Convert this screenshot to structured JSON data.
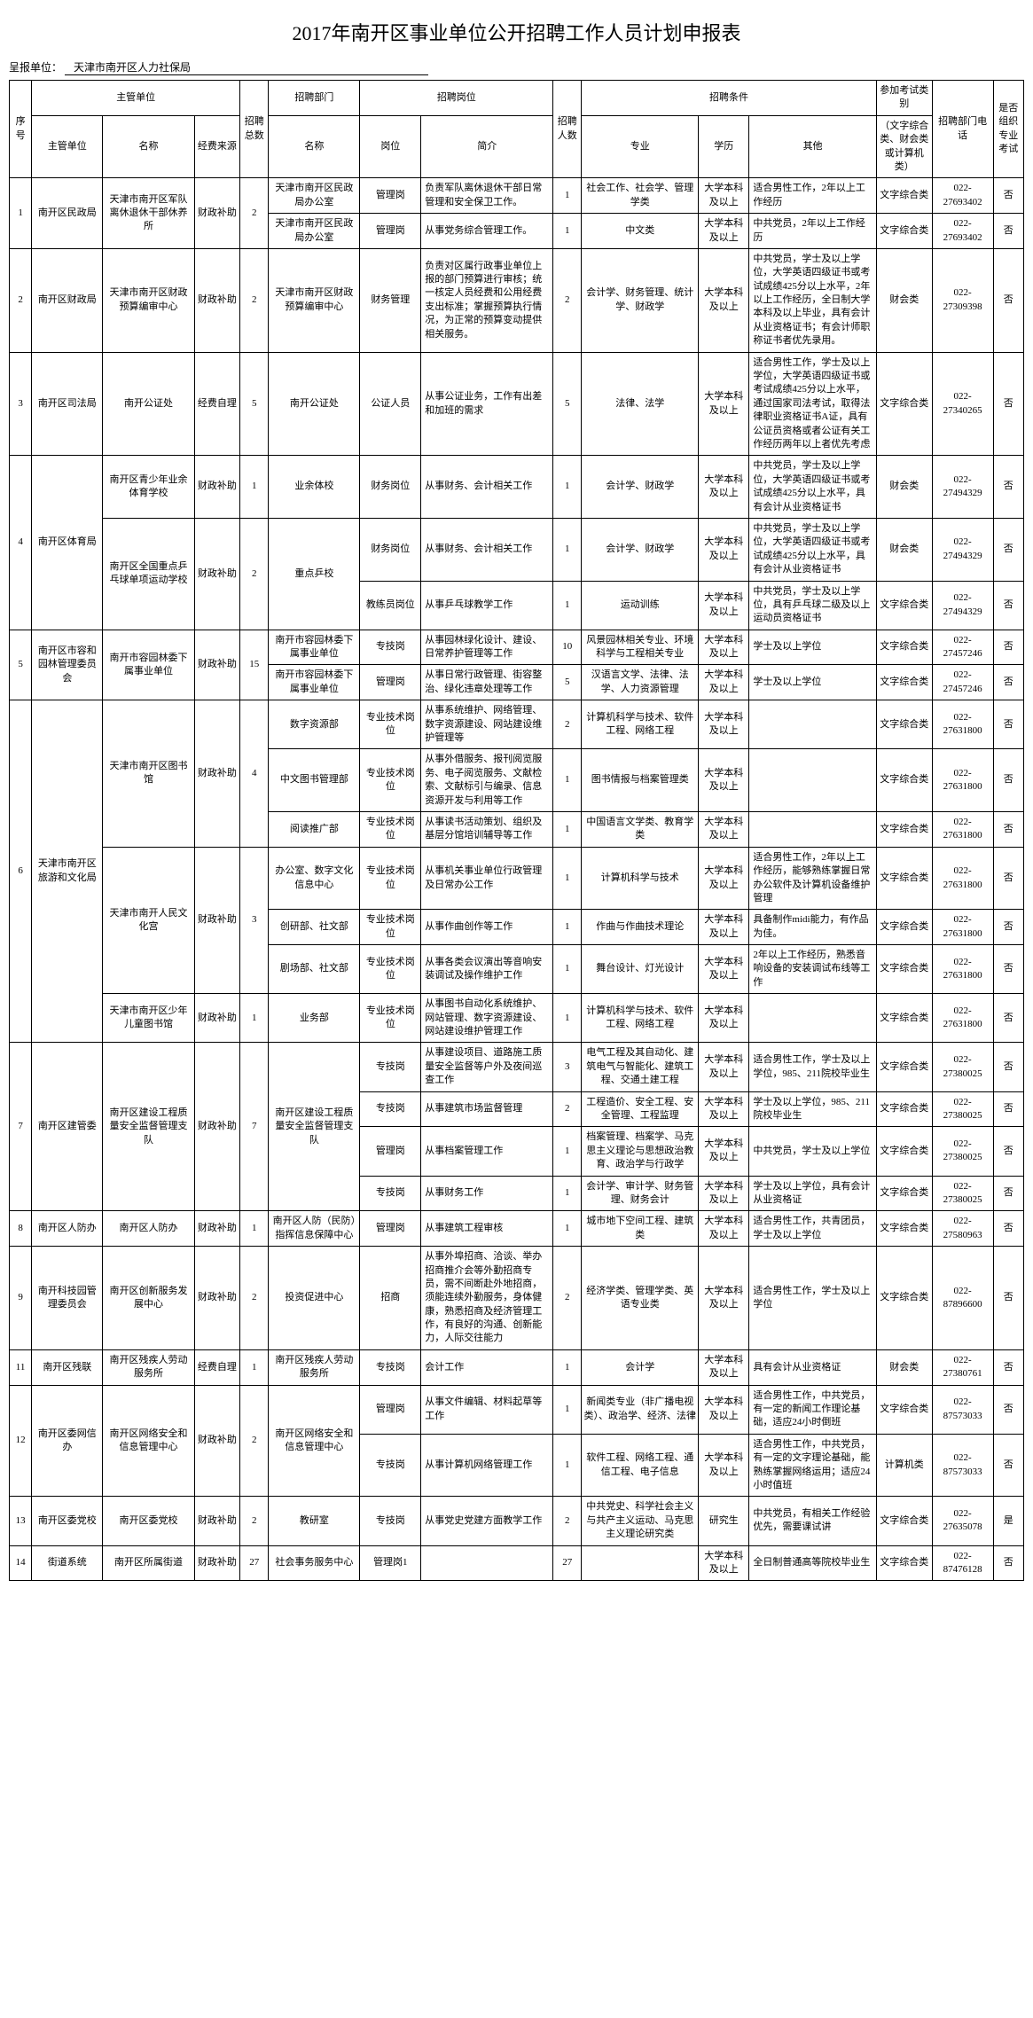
{
  "title": "2017年南开区事业单位公开招聘工作人员计划申报表",
  "submit_label": "呈报单位：",
  "submit_unit": "天津市南开区人力社保局",
  "headers": {
    "xu": "序号",
    "zgdw": "主管单位",
    "zgdw_sub1": "主管单位",
    "zgdw_sub2": "名称",
    "jfly": "经费来源",
    "zps": "招聘总数",
    "zpbm": "招聘部门",
    "zpbm_sub": "名称",
    "zpgw": "招聘岗位",
    "gw": "岗位",
    "jj": "简介",
    "rs": "招聘人数",
    "zptj": "招聘条件",
    "zy": "专业",
    "xl": "学历",
    "qt": "其他",
    "kslb": "参加考试类别",
    "kslb_sub": "（文字综合类、财会类或计算机类）",
    "tel": "招聘部门电话",
    "zyks": "是否组织专业考试"
  },
  "rows": [
    {
      "xu": "1",
      "zg": "南开区民政局",
      "mc": "天津市南开区军队离休退休干部休养所",
      "jf": "财政补助",
      "zs": "2",
      "sub": [
        {
          "bm": "天津市南开区民政局办公室",
          "gw": "管理岗",
          "jj": "负责军队离休退休干部日常管理和安全保卫工作。",
          "rs": "1",
          "zy": "社会工作、社会学、管理学类",
          "xl": "大学本科及以上",
          "qt": "适合男性工作，2年以上工作经历",
          "ks": "文字综合类",
          "tel": "022-27693402",
          "zk": "否"
        },
        {
          "bm": "天津市南开区民政局办公室",
          "gw": "管理岗",
          "jj": "从事党务综合管理工作。",
          "rs": "1",
          "zy": "中文类",
          "xl": "大学本科及以上",
          "qt": "中共党员，2年以上工作经历",
          "ks": "文字综合类",
          "tel": "022-27693402",
          "zk": "否"
        }
      ]
    },
    {
      "xu": "2",
      "zg": "南开区财政局",
      "mc": "天津市南开区财政预算编审中心",
      "jf": "财政补助",
      "zs": "2",
      "sub": [
        {
          "bm": "天津市南开区财政预算编审中心",
          "gw": "财务管理",
          "jj": "负责对区属行政事业单位上报的部门预算进行审核；统一核定人员经费和公用经费支出标准；掌握预算执行情况，为正常的预算变动提供相关服务。",
          "rs": "2",
          "zy": "会计学、财务管理、统计学、财政学",
          "xl": "大学本科及以上",
          "qt": "中共党员，学士及以上学位，大学英语四级证书或考试成绩425分以上水平，2年以上工作经历，全日制大学本科及以上毕业，具有会计从业资格证书；有会计师职称证书者优先录用。",
          "ks": "财会类",
          "tel": "022-27309398",
          "zk": "否"
        }
      ]
    },
    {
      "xu": "3",
      "zg": "南开区司法局",
      "mc": "南开公证处",
      "jf": "经费自理",
      "zs": "5",
      "sub": [
        {
          "bm": "南开公证处",
          "gw": "公证人员",
          "jj": "从事公证业务，工作有出差和加班的需求",
          "rs": "5",
          "zy": "法律、法学",
          "xl": "大学本科及以上",
          "qt": "适合男性工作，学士及以上学位，大学英语四级证书或考试成绩425分以上水平，通过国家司法考试，取得法律职业资格证书A证，具有公证员资格或者公证有关工作经历两年以上者优先考虑",
          "ks": "文字综合类",
          "tel": "022-27340265",
          "zk": "否"
        }
      ]
    },
    {
      "xu": "4",
      "zg": "南开区体育局",
      "mc_list": [
        {
          "mc": "南开区青少年业余体育学校",
          "jf": "财政补助",
          "zs": "1",
          "sub": [
            {
              "bm": "业余体校",
              "gw": "财务岗位",
              "jj": "从事财务、会计相关工作",
              "rs": "1",
              "zy": "会计学、财政学",
              "xl": "大学本科及以上",
              "qt": "中共党员，学士及以上学位，大学英语四级证书或考试成绩425分以上水平，具有会计从业资格证书",
              "ks": "财会类",
              "tel": "022-27494329",
              "zk": "否"
            }
          ]
        },
        {
          "mc": "南开区全国重点乒乓球单项运动学校",
          "jf": "财政补助",
          "zs": "2",
          "sub": [
            {
              "bm": "重点乒校",
              "gw": "财务岗位",
              "jj": "从事财务、会计相关工作",
              "rs": "1",
              "zy": "会计学、财政学",
              "xl": "大学本科及以上",
              "qt": "中共党员，学士及以上学位，大学英语四级证书或考试成绩425分以上水平，具有会计从业资格证书",
              "ks": "财会类",
              "tel": "022-27494329",
              "zk": "否"
            },
            {
              "bm": "",
              "gw": "教练员岗位",
              "jj": "从事乒乓球教学工作",
              "rs": "1",
              "zy": "运动训练",
              "xl": "大学本科及以上",
              "qt": "中共党员，学士及以上学位，具有乒乓球二级及以上运动员资格证书",
              "ks": "文字综合类",
              "tel": "022-27494329",
              "zk": "否"
            }
          ]
        }
      ]
    },
    {
      "xu": "5",
      "zg": "南开区市容和园林管理委员会",
      "mc": "南开市容园林委下属事业单位",
      "jf": "财政补助",
      "zs": "15",
      "sub": [
        {
          "bm": "南开市容园林委下属事业单位",
          "gw": "专技岗",
          "jj": "从事园林绿化设计、建设、日常养护管理等工作",
          "rs": "10",
          "zy": "风景园林相关专业、环境科学与工程相关专业",
          "xl": "大学本科及以上",
          "qt": "学士及以上学位",
          "ks": "文字综合类",
          "tel": "022-27457246",
          "zk": "否"
        },
        {
          "bm": "南开市容园林委下属事业单位",
          "gw": "管理岗",
          "jj": "从事日常行政管理、街容整治、绿化违章处理等工作",
          "rs": "5",
          "zy": "汉语言文学、法律、法学、人力资源管理",
          "xl": "大学本科及以上",
          "qt": "学士及以上学位",
          "ks": "文字综合类",
          "tel": "022-27457246",
          "zk": "否"
        }
      ]
    },
    {
      "xu": "6",
      "zg": "天津市南开区旅游和文化局",
      "mc_list": [
        {
          "mc": "天津市南开区图书馆",
          "jf": "财政补助",
          "zs": "4",
          "sub": [
            {
              "bm": "数字资源部",
              "gw": "专业技术岗位",
              "jj": "从事系统维护、网络管理、数字资源建设、网站建设维护管理等",
              "rs": "2",
              "zy": "计算机科学与技术、软件工程、网络工程",
              "xl": "大学本科及以上",
              "qt": "",
              "ks": "文字综合类",
              "tel": "022-27631800",
              "zk": "否"
            },
            {
              "bm": "中文图书管理部",
              "gw": "专业技术岗位",
              "jj": "从事外借服务、报刊阅览服务、电子阅览服务、文献检索、文献标引与编录、信息资源开发与利用等工作",
              "rs": "1",
              "zy": "图书情报与档案管理类",
              "xl": "大学本科及以上",
              "qt": "",
              "ks": "文字综合类",
              "tel": "022-27631800",
              "zk": "否"
            },
            {
              "bm": "阅读推广部",
              "gw": "专业技术岗位",
              "jj": "从事读书活动策划、组织及基层分馆培训辅导等工作",
              "rs": "1",
              "zy": "中国语言文学类、教育学类",
              "xl": "大学本科及以上",
              "qt": "",
              "ks": "文字综合类",
              "tel": "022-27631800",
              "zk": "否"
            }
          ]
        },
        {
          "mc": "天津市南开人民文化宫",
          "jf": "财政补助",
          "zs": "3",
          "sub": [
            {
              "bm": "办公室、数字文化信息中心",
              "gw": "专业技术岗位",
              "jj": "从事机关事业单位行政管理及日常办公工作",
              "rs": "1",
              "zy": "计算机科学与技术",
              "xl": "大学本科及以上",
              "qt": "适合男性工作，2年以上工作经历，能够熟练掌握日常办公软件及计算机设备维护管理",
              "ks": "文字综合类",
              "tel": "022-27631800",
              "zk": "否"
            },
            {
              "bm": "创研部、社文部",
              "gw": "专业技术岗位",
              "jj": "从事作曲创作等工作",
              "rs": "1",
              "zy": "作曲与作曲技术理论",
              "xl": "大学本科及以上",
              "qt": "具备制作midi能力，有作品为佳。",
              "ks": "文字综合类",
              "tel": "022-27631800",
              "zk": "否"
            },
            {
              "bm": "剧场部、社文部",
              "gw": "专业技术岗位",
              "jj": "从事各类会议演出等音响安装调试及操作维护工作",
              "rs": "1",
              "zy": "舞台设计、灯光设计",
              "xl": "大学本科及以上",
              "qt": "2年以上工作经历，熟悉音响设备的安装调试布线等工作",
              "ks": "文字综合类",
              "tel": "022-27631800",
              "zk": "否"
            }
          ]
        },
        {
          "mc": "天津市南开区少年儿童图书馆",
          "jf": "财政补助",
          "zs": "1",
          "sub": [
            {
              "bm": "业务部",
              "gw": "专业技术岗位",
              "jj": "从事图书自动化系统维护、网站管理、数字资源建设、网站建设维护管理工作",
              "rs": "1",
              "zy": "计算机科学与技术、软件工程、网络工程",
              "xl": "大学本科及以上",
              "qt": "",
              "ks": "文字综合类",
              "tel": "022-27631800",
              "zk": "否"
            }
          ]
        }
      ]
    },
    {
      "xu": "7",
      "zg": "南开区建管委",
      "mc": "南开区建设工程质量安全监督管理支队",
      "jf": "财政补助",
      "zs": "7",
      "sub": [
        {
          "bm": "南开区建设工程质量安全监督管理支队",
          "gw": "专技岗",
          "jj": "从事建设项目、道路施工质量安全监督等户外及夜间巡查工作",
          "rs": "3",
          "zy": "电气工程及其自动化、建筑电气与智能化、建筑工程、交通土建工程",
          "xl": "大学本科及以上",
          "qt": "适合男性工作，学士及以上学位，985、211院校毕业生",
          "ks": "文字综合类",
          "tel": "022-27380025",
          "zk": "否"
        },
        {
          "bm": "",
          "gw": "专技岗",
          "jj": "从事建筑市场监督管理",
          "rs": "2",
          "zy": "工程造价、安全工程、安全管理、工程监理",
          "xl": "大学本科及以上",
          "qt": "学士及以上学位，985、211院校毕业生",
          "ks": "文字综合类",
          "tel": "022-27380025",
          "zk": "否"
        },
        {
          "bm": "",
          "gw": "管理岗",
          "jj": "从事档案管理工作",
          "rs": "1",
          "zy": "档案管理、档案学、马克思主义理论与思想政治教育、政治学与行政学",
          "xl": "大学本科及以上",
          "qt": "中共党员，学士及以上学位",
          "ks": "文字综合类",
          "tel": "022-27380025",
          "zk": "否"
        },
        {
          "bm": "",
          "gw": "专技岗",
          "jj": "从事财务工作",
          "rs": "1",
          "zy": "会计学、审计学、财务管理、财务会计",
          "xl": "大学本科及以上",
          "qt": "学士及以上学位，具有会计从业资格证",
          "ks": "文字综合类",
          "tel": "022-27380025",
          "zk": "否"
        }
      ]
    },
    {
      "xu": "8",
      "zg": "南开区人防办",
      "mc": "南开区人防办",
      "jf": "财政补助",
      "zs": "1",
      "sub": [
        {
          "bm": "南开区人防（民防）指挥信息保障中心",
          "gw": "管理岗",
          "jj": "从事建筑工程审核",
          "rs": "1",
          "zy": "城市地下空间工程、建筑类",
          "xl": "大学本科及以上",
          "qt": "适合男性工作，共青团员，学士及以上学位",
          "ks": "文字综合类",
          "tel": "022-27580963",
          "zk": "否"
        }
      ]
    },
    {
      "xu": "9",
      "zg": "南开科技园管理委员会",
      "mc": "南开区创新服务发展中心",
      "jf": "财政补助",
      "zs": "2",
      "sub": [
        {
          "bm": "投资促进中心",
          "gw": "招商",
          "jj": "从事外埠招商、洽谈、举办招商推介会等外勤招商专员，需不间断赴外地招商，须能连续外勤服务，身体健康，熟悉招商及经济管理工作，有良好的沟通、创新能力，人际交往能力",
          "rs": "2",
          "zy": "经济学类、管理学类、英语专业类",
          "xl": "大学本科及以上",
          "qt": "适合男性工作，学士及以上学位",
          "ks": "文字综合类",
          "tel": "022-87896600",
          "zk": "否"
        }
      ]
    },
    {
      "xu": "11",
      "zg": "南开区残联",
      "mc": "南开区残疾人劳动服务所",
      "jf": "经费自理",
      "zs": "1",
      "sub": [
        {
          "bm": "南开区残疾人劳动服务所",
          "gw": "专技岗",
          "jj": "会计工作",
          "rs": "1",
          "zy": "会计学",
          "xl": "大学本科及以上",
          "qt": "具有会计从业资格证",
          "ks": "财会类",
          "tel": "022-27380761",
          "zk": "否"
        }
      ]
    },
    {
      "xu": "12",
      "zg": "南开区委网信办",
      "mc": "南开区网络安全和信息管理中心",
      "jf": "财政补助",
      "zs": "2",
      "sub": [
        {
          "bm": "南开区网络安全和信息管理中心",
          "gw": "管理岗",
          "jj": "从事文件编辑、材料起草等工作",
          "rs": "1",
          "zy": "新闻类专业（非广播电视类）、政治学、经济、法律",
          "xl": "大学本科及以上",
          "qt": "适合男性工作，中共党员，有一定的新闻工作理论基础，适应24小时倒班",
          "ks": "文字综合类",
          "tel": "022-87573033",
          "zk": "否"
        },
        {
          "bm": "",
          "gw": "专技岗",
          "jj": "从事计算机网络管理工作",
          "rs": "1",
          "zy": "软件工程、网络工程、通信工程、电子信息",
          "xl": "大学本科及以上",
          "qt": "适合男性工作，中共党员，有一定的文字理论基础，能熟练掌握网络运用；适应24小时值班",
          "ks": "计算机类",
          "tel": "022-87573033",
          "zk": "否"
        }
      ]
    },
    {
      "xu": "13",
      "zg": "南开区委党校",
      "mc": "南开区委党校",
      "jf": "财政补助",
      "zs": "2",
      "sub": [
        {
          "bm": "教研室",
          "gw": "专技岗",
          "jj": "从事党史党建方面教学工作",
          "rs": "2",
          "zy": "中共党史、科学社会主义与共产主义运动、马克思主义理论研究类",
          "xl": "研究生",
          "qt": "中共党员，有相关工作经验优先，需要课试讲",
          "ks": "文字综合类",
          "tel": "022-27635078",
          "zk": "是"
        }
      ]
    },
    {
      "xu": "14",
      "zg": "街道系统",
      "mc": "南开区所属街道",
      "jf": "财政补助",
      "zs": "27",
      "sub": [
        {
          "bm": "社会事务服务中心",
          "gw": "管理岗1",
          "jj": "",
          "rs": "27",
          "zy": "",
          "xl": "大学本科及以上",
          "qt": "全日制普通高等院校毕业生",
          "ks": "文字综合类",
          "tel": "022-87476128",
          "zk": "否"
        }
      ]
    }
  ]
}
